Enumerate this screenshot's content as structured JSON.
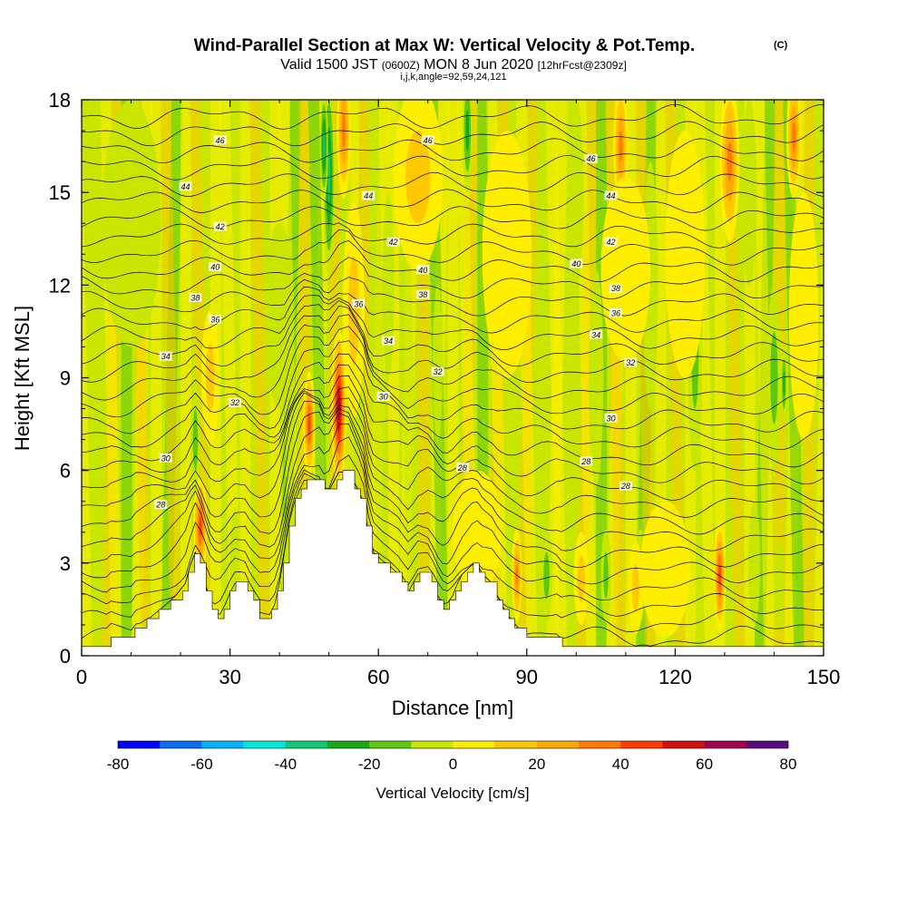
{
  "chart_data": {
    "type": "heatmap",
    "title": "Wind-Parallel Section at Max W: Vertical Velocity & Pot.Temp.",
    "title_mark": "(C)",
    "subtitle_parts": [
      "Valid 1500 JST ",
      "(0600Z)",
      " MON 8 Jun 2020 ",
      "[12hrFcst@2309z]"
    ],
    "info_line": "i,j,k,angle=92,59,24,121",
    "xlabel": "Distance [nm]",
    "ylabel": "Height [Kft MSL]",
    "xlim": [
      0,
      150
    ],
    "ylim": [
      0,
      18
    ],
    "x_ticks": [
      "0",
      "30",
      "60",
      "90",
      "120",
      "150"
    ],
    "y_ticks": [
      "0",
      "3",
      "6",
      "9",
      "12",
      "15",
      "18"
    ],
    "colorbar": {
      "title": "Vertical Velocity [cm/s]",
      "labels": [
        "-80",
        "-60",
        "-40",
        "-20",
        "0",
        "20",
        "40",
        "60",
        "80"
      ],
      "range": [
        -80,
        80
      ],
      "colors": [
        "#0000ff",
        "#0a6ef0",
        "#00b4ff",
        "#00e8d8",
        "#10c878",
        "#18a818",
        "#5cc810",
        "#c8e600",
        "#ffee00",
        "#ffc800",
        "#ffaa00",
        "#ff7a00",
        "#ff3c00",
        "#d21010",
        "#a00050",
        "#5a0a7a"
      ]
    },
    "terrain": [
      [
        0,
        0.3
      ],
      [
        5,
        0.3
      ],
      [
        5,
        0.6
      ],
      [
        10,
        0.6
      ],
      [
        10,
        0.9
      ],
      [
        14,
        1.2
      ],
      [
        17,
        1.6
      ],
      [
        19,
        1.9
      ],
      [
        21,
        2.3
      ],
      [
        22,
        2.9
      ],
      [
        23,
        3.3
      ],
      [
        24,
        2.9
      ],
      [
        25,
        2.3
      ],
      [
        26,
        1.6
      ],
      [
        27,
        1.3
      ],
      [
        28,
        1.3
      ],
      [
        29,
        1.6
      ],
      [
        30,
        2.0
      ],
      [
        31,
        2.3
      ],
      [
        33,
        2.3
      ],
      [
        34,
        1.9
      ],
      [
        35,
        1.6
      ],
      [
        36,
        1.3
      ],
      [
        38,
        1.3
      ],
      [
        39,
        1.6
      ],
      [
        40,
        2.3
      ],
      [
        41,
        3.3
      ],
      [
        42,
        4.3
      ],
      [
        43,
        4.9
      ],
      [
        44,
        5.3
      ],
      [
        45,
        5.6
      ],
      [
        48,
        5.6
      ],
      [
        49,
        5.3
      ],
      [
        50,
        5.3
      ],
      [
        51,
        5.6
      ],
      [
        52,
        5.9
      ],
      [
        54,
        5.9
      ],
      [
        55,
        5.6
      ],
      [
        56,
        5.3
      ],
      [
        57,
        4.9
      ],
      [
        58,
        3.9
      ],
      [
        59,
        3.3
      ],
      [
        61,
        3.0
      ],
      [
        62,
        2.9
      ],
      [
        64,
        2.6
      ],
      [
        65,
        2.3
      ],
      [
        66,
        2.0
      ],
      [
        67,
        2.3
      ],
      [
        68,
        2.6
      ],
      [
        70,
        2.6
      ],
      [
        71,
        2.3
      ],
      [
        72,
        1.9
      ],
      [
        73,
        1.6
      ],
      [
        74,
        1.6
      ],
      [
        75,
        1.9
      ],
      [
        76,
        2.3
      ],
      [
        77,
        2.6
      ],
      [
        79,
        2.9
      ],
      [
        80,
        2.9
      ],
      [
        81,
        2.6
      ],
      [
        83,
        2.3
      ],
      [
        84,
        1.9
      ],
      [
        86,
        1.3
      ],
      [
        88,
        0.9
      ],
      [
        90,
        0.6
      ],
      [
        96,
        0.6
      ],
      [
        97,
        0.3
      ],
      [
        150,
        0.3
      ]
    ],
    "updrafts": [
      [
        24,
        4.2,
        1.4,
        1.6,
        50
      ],
      [
        26,
        9.0,
        1.8,
        2.2,
        22
      ],
      [
        46,
        7.5,
        1.2,
        1.7,
        58
      ],
      [
        52,
        8.0,
        1.5,
        2.6,
        72
      ],
      [
        53,
        17.0,
        1.4,
        2.2,
        48
      ],
      [
        55,
        11.2,
        2.2,
        3.5,
        20
      ],
      [
        68,
        15.5,
        5.0,
        3.0,
        20
      ],
      [
        80,
        4.0,
        5.0,
        2.0,
        18
      ],
      [
        88,
        2.6,
        1.0,
        1.5,
        45
      ],
      [
        86,
        13.0,
        5.0,
        4.0,
        12
      ],
      [
        109,
        16.5,
        1.5,
        2.0,
        40
      ],
      [
        110,
        12.5,
        5.0,
        3.0,
        18
      ],
      [
        118,
        2.8,
        5.0,
        2.2,
        16
      ],
      [
        122,
        13.0,
        4.0,
        4.0,
        14
      ],
      [
        129,
        2.6,
        1.2,
        1.8,
        55
      ],
      [
        131,
        16.0,
        2.0,
        2.6,
        40
      ],
      [
        144,
        16.8,
        1.5,
        2.0,
        48
      ],
      [
        146,
        11.0,
        3.0,
        4.0,
        18
      ],
      [
        101,
        2.5,
        1.5,
        1.5,
        20
      ],
      [
        112,
        2.2,
        1.5,
        1.5,
        20
      ]
    ],
    "downdrafts": [
      [
        50,
        15.5,
        1.2,
        3.2,
        -48
      ],
      [
        49,
        16.5,
        0.8,
        1.8,
        -40
      ],
      [
        56,
        9.5,
        1.2,
        3.0,
        -28
      ],
      [
        78,
        17.0,
        1.0,
        2.0,
        -38
      ],
      [
        72,
        9.5,
        1.0,
        2.5,
        -15
      ],
      [
        23,
        7.0,
        1.0,
        2.0,
        -22
      ],
      [
        31,
        3.0,
        1.0,
        1.8,
        -12
      ],
      [
        42,
        3.2,
        2.0,
        1.5,
        -14
      ],
      [
        94,
        2.6,
        1.2,
        1.5,
        -24
      ],
      [
        104,
        9.0,
        1.5,
        3.5,
        -18
      ],
      [
        106,
        2.6,
        1.0,
        1.5,
        -22
      ],
      [
        115,
        12.0,
        1.5,
        4.0,
        -18
      ],
      [
        113,
        2.6,
        1.0,
        1.5,
        -16
      ],
      [
        124,
        10.0,
        1.5,
        4.0,
        -20
      ],
      [
        140,
        9.0,
        1.5,
        3.0,
        -22
      ],
      [
        142,
        8.8,
        0.6,
        1.2,
        -38
      ],
      [
        141,
        2.3,
        1.0,
        1.5,
        -16
      ],
      [
        136,
        3.0,
        1.2,
        2.0,
        -14
      ],
      [
        100,
        15.0,
        1.5,
        3.0,
        -14
      ],
      [
        135,
        15.0,
        1.5,
        3.0,
        -18
      ],
      [
        40,
        11.0,
        3.0,
        3.0,
        -8
      ],
      [
        10,
        14.0,
        6.0,
        4.0,
        -6
      ],
      [
        62,
        12.0,
        1.2,
        3.0,
        -14
      ]
    ],
    "theta_contours": [
      {
        "value": "46",
        "y0": 16.7,
        "labels": [
          [
            28,
            16.7
          ],
          [
            70,
            16.7
          ],
          [
            103,
            16.1
          ]
        ]
      },
      {
        "value": "44",
        "y0": 15.2,
        "labels": [
          [
            21,
            15.2
          ],
          [
            58,
            14.9
          ],
          [
            107,
            14.9
          ]
        ]
      },
      {
        "value": "42",
        "y0": 13.8,
        "labels": [
          [
            28,
            13.9
          ],
          [
            63,
            13.4
          ],
          [
            107,
            13.4
          ]
        ]
      },
      {
        "value": "40",
        "y0": 12.4,
        "labels": [
          [
            27,
            12.6
          ],
          [
            69,
            12.5
          ],
          [
            100,
            12.7
          ]
        ]
      },
      {
        "value": "38",
        "y0": 11.5,
        "labels": [
          [
            23,
            11.6
          ],
          [
            69,
            11.7
          ],
          [
            108,
            11.9
          ]
        ]
      },
      {
        "value": "36",
        "y0": 10.7,
        "labels": [
          [
            27,
            10.9
          ],
          [
            56,
            11.4
          ],
          [
            108,
            11.1
          ]
        ]
      },
      {
        "value": "34",
        "y0": 9.7,
        "labels": [
          [
            17,
            9.7
          ],
          [
            62,
            10.2
          ],
          [
            104,
            10.4
          ]
        ]
      },
      {
        "value": "32",
        "y0": 8.6,
        "labels": [
          [
            31,
            8.2
          ],
          [
            72,
            9.2
          ],
          [
            111,
            9.5
          ]
        ]
      },
      {
        "value": "30",
        "y0": 6.8,
        "labels": [
          [
            17,
            6.4
          ],
          [
            61,
            8.4
          ],
          [
            107,
            7.7
          ]
        ]
      },
      {
        "value": "28",
        "y0": 4.6,
        "labels": [
          [
            16,
            4.9
          ],
          [
            77,
            6.1
          ],
          [
            102,
            6.3
          ],
          [
            110,
            5.5
          ]
        ]
      }
    ]
  }
}
